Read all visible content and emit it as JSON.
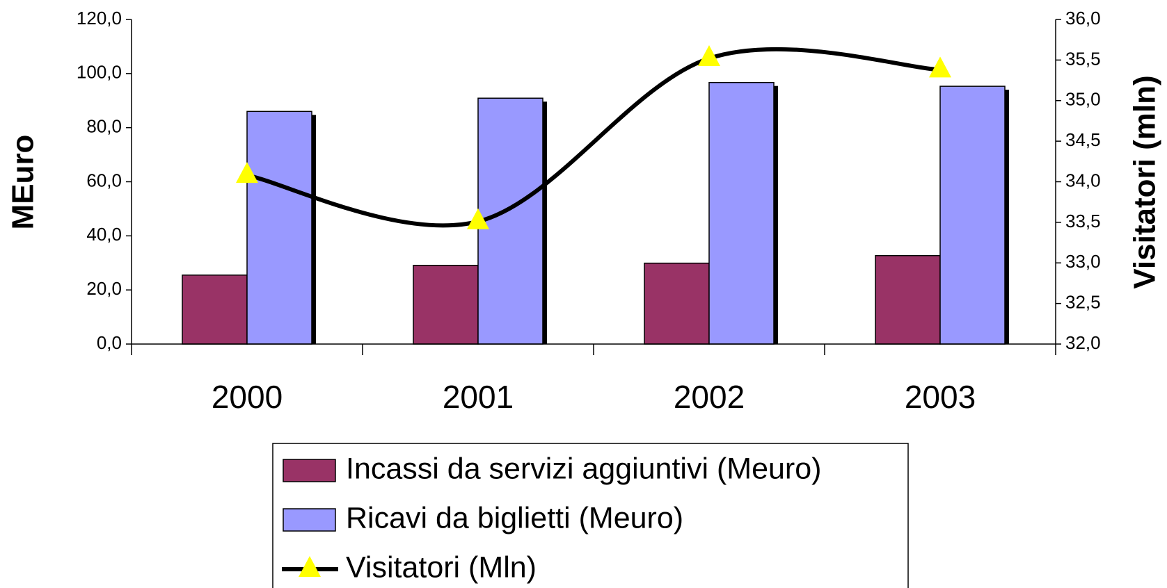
{
  "chart_data": {
    "type": "bar",
    "categories": [
      "2000",
      "2001",
      "2002",
      "2003"
    ],
    "series": [
      {
        "name": "Incassi da servizi aggiuntivi (Meuro)",
        "color": "#993366",
        "values": [
          25.5,
          29.1,
          29.9,
          32.7
        ]
      },
      {
        "name": "Ricavi da biglietti (Meuro)",
        "color": "#9999ff",
        "values": [
          86.0,
          90.9,
          96.7,
          95.3
        ]
      },
      {
        "name": "Visitatori (Mln)",
        "type": "line",
        "axis": "y2",
        "color": "#000000",
        "marker_color": "#ffff00",
        "values": [
          34.08,
          33.51,
          35.52,
          35.38
        ]
      }
    ],
    "ylabel": "MEuro",
    "y2label": "Visitatori (mln)",
    "ylim": [
      0,
      120
    ],
    "yticks": [
      {
        "value": 0,
        "label": "0,0"
      },
      {
        "value": 20,
        "label": "20,0"
      },
      {
        "value": 40,
        "label": "40,0"
      },
      {
        "value": 60,
        "label": "60,0"
      },
      {
        "value": 80,
        "label": "80,0"
      },
      {
        "value": 100,
        "label": "100,0"
      },
      {
        "value": 120,
        "label": "120,0"
      }
    ],
    "y2lim": [
      32,
      36
    ],
    "y2ticks": [
      {
        "value": 32,
        "label": "32,0"
      },
      {
        "value": 32.5,
        "label": "32,5"
      },
      {
        "value": 33,
        "label": "33,0"
      },
      {
        "value": 33.5,
        "label": "33,5"
      },
      {
        "value": 34,
        "label": "34,0"
      },
      {
        "value": 34.5,
        "label": "34,5"
      },
      {
        "value": 35,
        "label": "35,0"
      },
      {
        "value": 35.5,
        "label": "35,5"
      },
      {
        "value": 36,
        "label": "36,0"
      }
    ],
    "legend": "bottom"
  }
}
